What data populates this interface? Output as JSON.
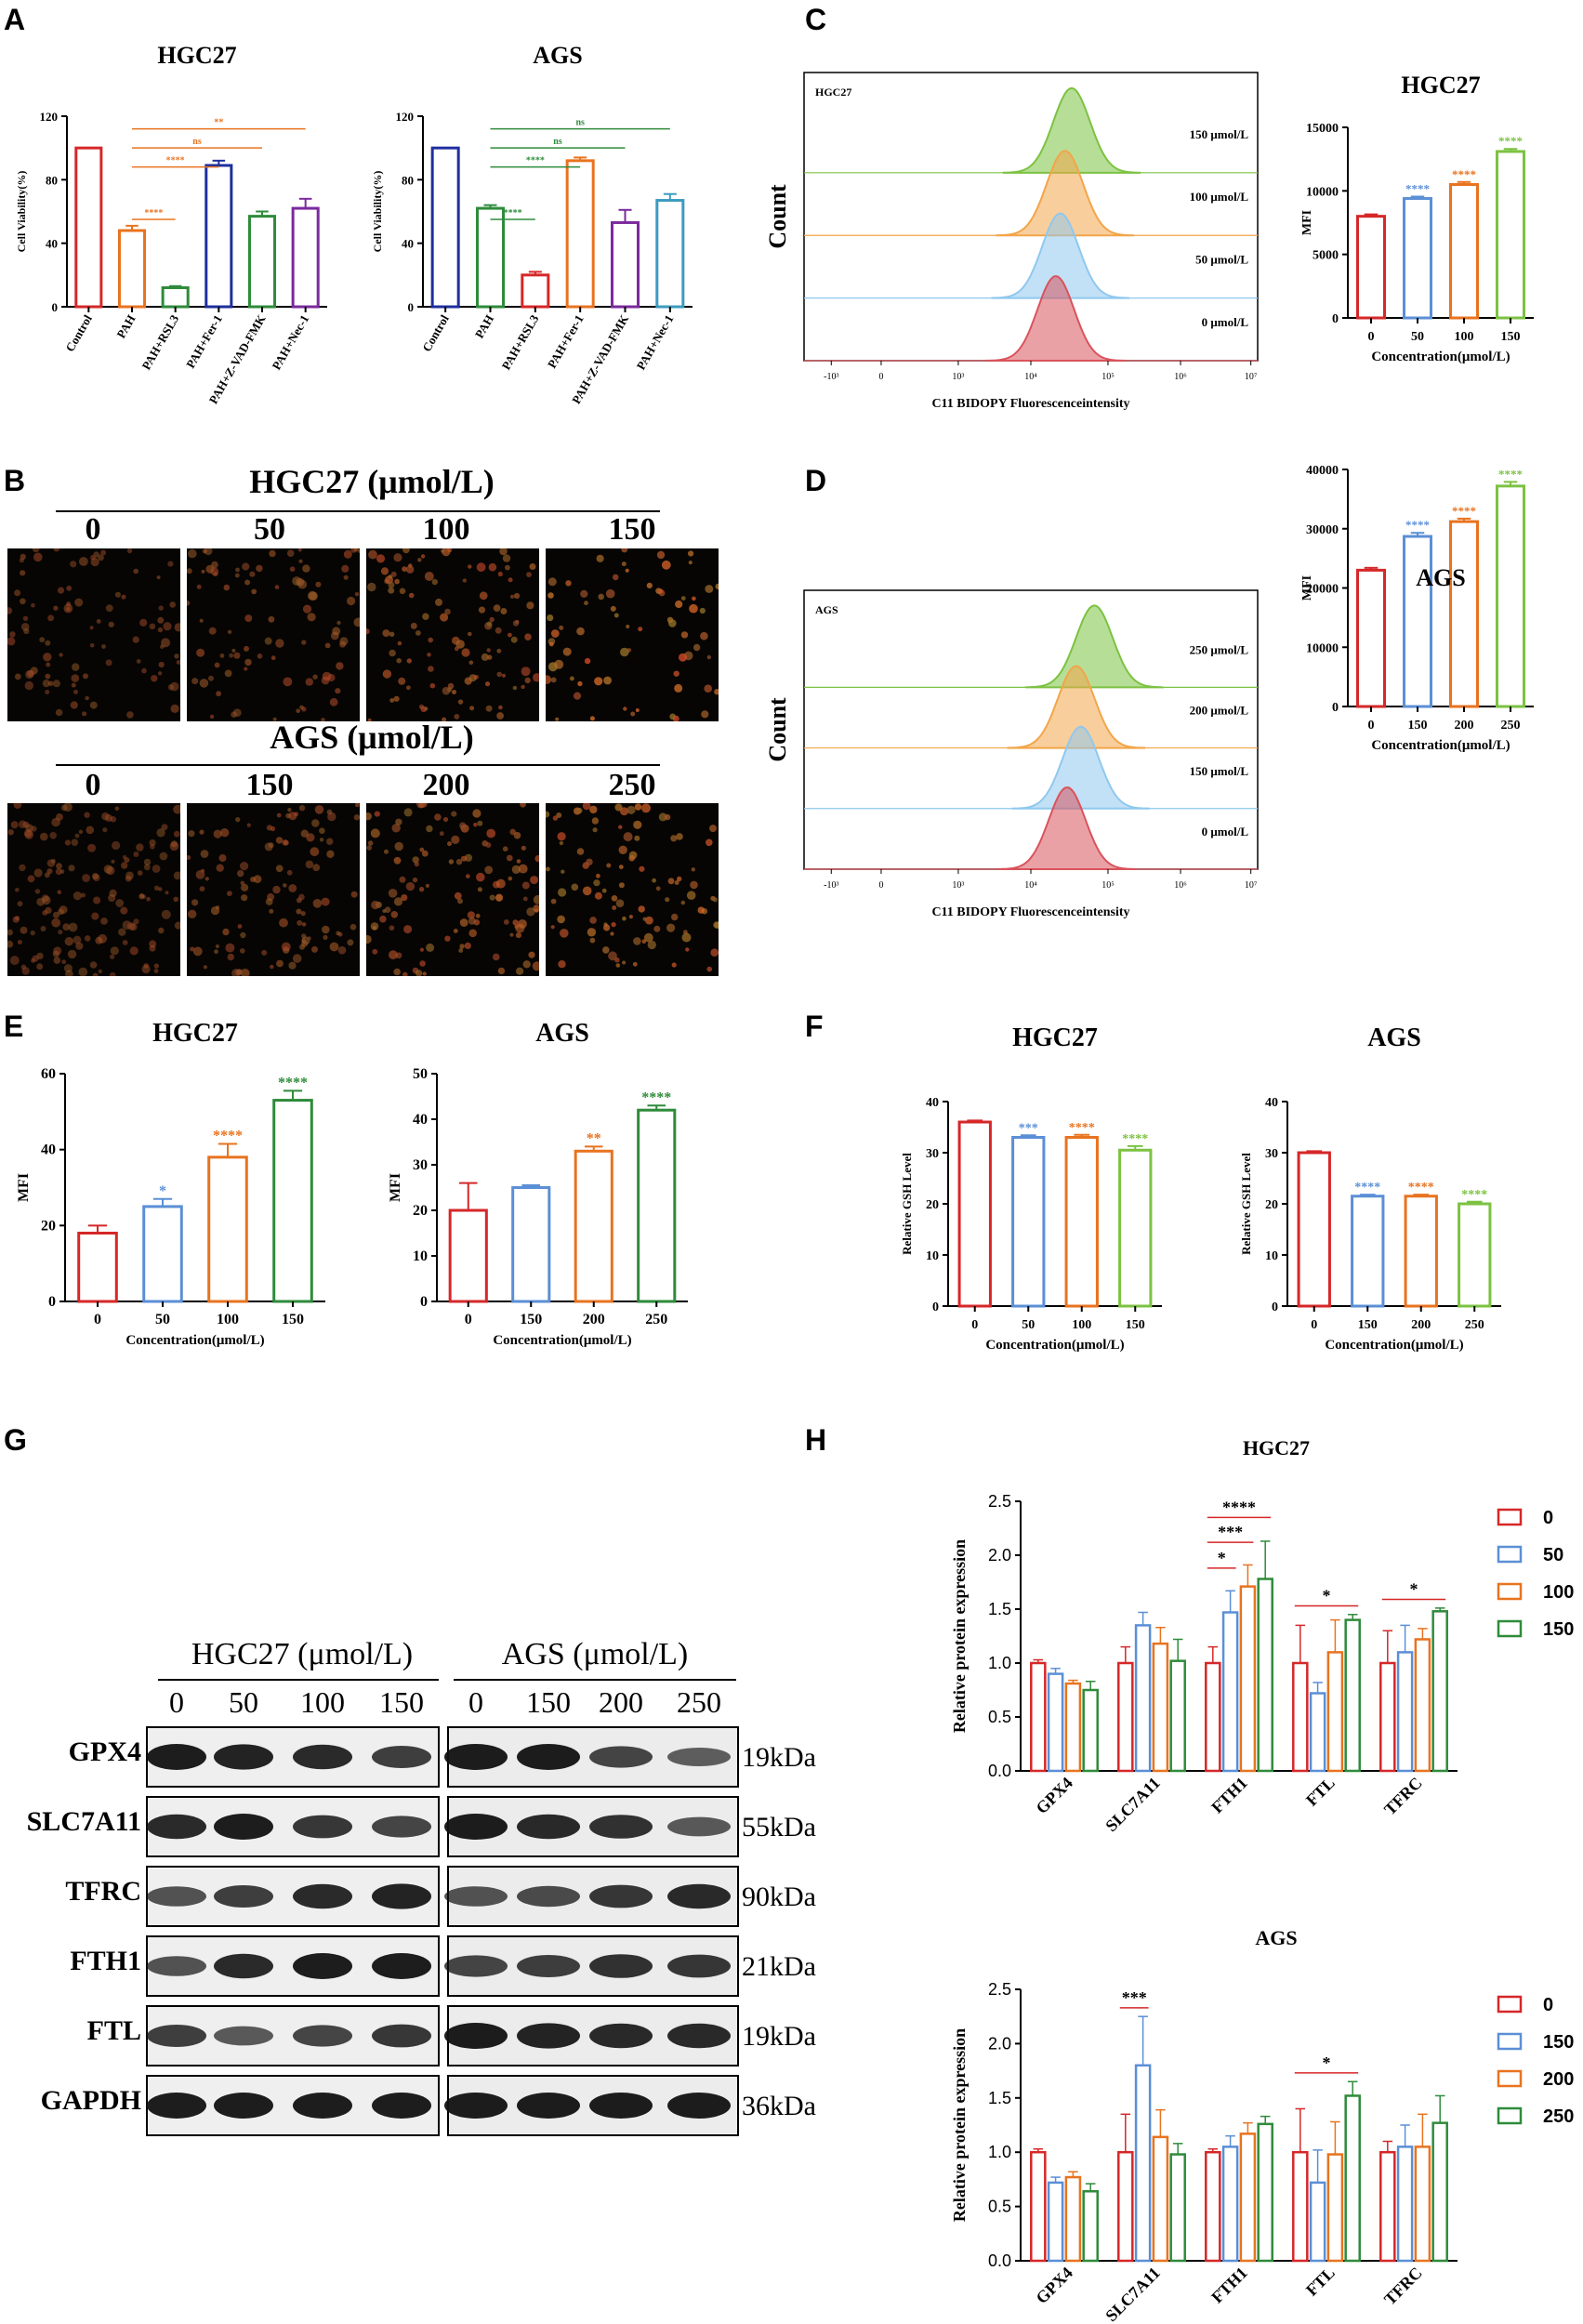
{
  "panel_labels": {
    "A": "A",
    "B": "B",
    "C": "C",
    "D": "D",
    "E": "E",
    "F": "F",
    "G": "G",
    "H": "H"
  },
  "colors": {
    "red": "#d62728",
    "orange": "#e8731f",
    "dark_green": "#2e8b3a",
    "navy": "#1f2f9e",
    "purple": "#7b2a9e",
    "teal": "#3c9bbf",
    "light_blue": "#5b8fd6",
    "light_green": "#7cc242",
    "light_orange": "#f2a54a",
    "pale_blue": "#8fc8ee",
    "rose": "#d9535c"
  },
  "chart_data": [
    {
      "id": "A1",
      "type": "bar",
      "title": "HGC27",
      "ylabel": "Cell Viability(%)",
      "ylim": [
        0,
        120
      ],
      "yticks": [
        0,
        40,
        80,
        120
      ],
      "categories": [
        "Control",
        "PAH",
        "PAH+RSL3",
        "PAH+Fer-1",
        "PAH+Z-VAD-FMK",
        "PAH+Nec-1"
      ],
      "values": [
        100,
        48,
        12,
        89,
        57,
        62
      ],
      "errors": [
        0,
        3,
        1,
        3,
        3,
        6
      ],
      "bar_colors": [
        "#d62728",
        "#e8731f",
        "#2e8b3a",
        "#1f2f9e",
        "#2e8b3a",
        "#7b2a9e"
      ],
      "annotations": [
        {
          "label": "****",
          "from": 1,
          "to": 2,
          "color": "#e8731f"
        },
        {
          "label": "****",
          "from": 1,
          "to": 3,
          "color": "#e8731f"
        },
        {
          "label": "ns",
          "from": 1,
          "to": 4,
          "color": "#e8731f"
        },
        {
          "label": "**",
          "from": 1,
          "to": 5,
          "color": "#e8731f"
        }
      ]
    },
    {
      "id": "A2",
      "type": "bar",
      "title": "AGS",
      "ylabel": "Cell Viability(%)",
      "ylim": [
        0,
        120
      ],
      "yticks": [
        0,
        40,
        80,
        120
      ],
      "categories": [
        "Control",
        "PAH",
        "PAH+RSL3",
        "PAH+Fer-1",
        "PAH+Z-VAD-FMK",
        "PAH+Nec-1"
      ],
      "values": [
        100,
        62,
        20,
        92,
        53,
        67
      ],
      "errors": [
        0,
        2,
        2,
        2,
        8,
        4
      ],
      "bar_colors": [
        "#1f2f9e",
        "#2e8b3a",
        "#d62728",
        "#e8731f",
        "#7b2a9e",
        "#3c9bbf"
      ],
      "annotations": [
        {
          "label": "****",
          "from": 1,
          "to": 2,
          "color": "#2e8b3a"
        },
        {
          "label": "****",
          "from": 1,
          "to": 3,
          "color": "#2e8b3a"
        },
        {
          "label": "ns",
          "from": 1,
          "to": 4,
          "color": "#2e8b3a"
        },
        {
          "label": "ns",
          "from": 1,
          "to": 5,
          "color": "#2e8b3a"
        }
      ]
    },
    {
      "id": "C2",
      "type": "bar",
      "title": "HGC27",
      "ylabel": "MFI",
      "xlabel": "Concentration(μmol/L)",
      "ylim": [
        0,
        15000
      ],
      "yticks": [
        0,
        5000,
        10000,
        15000
      ],
      "categories": [
        "0",
        "50",
        "100",
        "150"
      ],
      "values": [
        8000,
        9400,
        10500,
        13100
      ],
      "errors": [
        150,
        150,
        200,
        200
      ],
      "bar_colors": [
        "#d62728",
        "#5b8fd6",
        "#e8731f",
        "#7cc242"
      ],
      "sig": [
        "",
        "****",
        "****",
        "****"
      ]
    },
    {
      "id": "D2",
      "type": "bar",
      "title": "AGS",
      "ylabel": "MFI",
      "xlabel": "Concentration(μmol/L)",
      "ylim": [
        0,
        40000
      ],
      "yticks": [
        0,
        10000,
        20000,
        30000,
        40000
      ],
      "categories": [
        "0",
        "150",
        "200",
        "250"
      ],
      "values": [
        23000,
        28700,
        31200,
        37200
      ],
      "errors": [
        400,
        600,
        500,
        700
      ],
      "bar_colors": [
        "#d62728",
        "#5b8fd6",
        "#e8731f",
        "#7cc242"
      ],
      "sig": [
        "",
        "****",
        "****",
        "****"
      ]
    },
    {
      "id": "E1",
      "type": "bar",
      "title": "HGC27",
      "ylabel": "MFI",
      "xlabel": "Concentration(μmol/L)",
      "ylim": [
        0,
        60
      ],
      "yticks": [
        0,
        20,
        40,
        60
      ],
      "categories": [
        "0",
        "50",
        "100",
        "150"
      ],
      "values": [
        18,
        25,
        38,
        53
      ],
      "errors": [
        2,
        2,
        3.5,
        2.5
      ],
      "bar_colors": [
        "#d62728",
        "#5b8fd6",
        "#e8731f",
        "#2e8b3a"
      ],
      "sig": [
        "",
        "*",
        "****",
        "****"
      ]
    },
    {
      "id": "E2",
      "type": "bar",
      "title": "AGS",
      "ylabel": "MFI",
      "xlabel": "Concentration(μmol/L)",
      "ylim": [
        0,
        50
      ],
      "yticks": [
        0,
        10,
        20,
        30,
        40,
        50
      ],
      "categories": [
        "0",
        "150",
        "200",
        "250"
      ],
      "values": [
        20,
        25,
        33,
        42
      ],
      "errors": [
        6,
        0.5,
        1,
        1
      ],
      "bar_colors": [
        "#d62728",
        "#5b8fd6",
        "#e8731f",
        "#2e8b3a"
      ],
      "sig": [
        "",
        "",
        "**",
        "****"
      ]
    },
    {
      "id": "F1",
      "type": "bar",
      "title": "HGC27",
      "ylabel": "Relative GSH Level",
      "xlabel": "Concentration(μmol/L)",
      "ylim": [
        0,
        40
      ],
      "yticks": [
        0,
        10,
        20,
        30,
        40
      ],
      "categories": [
        "0",
        "50",
        "100",
        "150"
      ],
      "values": [
        36,
        33,
        33,
        30.5
      ],
      "errors": [
        0.3,
        0.4,
        0.5,
        0.8
      ],
      "bar_colors": [
        "#d62728",
        "#5b8fd6",
        "#e8731f",
        "#7cc242"
      ],
      "sig": [
        "",
        "***",
        "****",
        "****"
      ]
    },
    {
      "id": "F2",
      "type": "bar",
      "title": "AGS",
      "ylabel": "Relative GSH Level",
      "xlabel": "Concentration(μmol/L)",
      "ylim": [
        0,
        40
      ],
      "yticks": [
        0,
        10,
        20,
        30,
        40
      ],
      "categories": [
        "0",
        "150",
        "200",
        "250"
      ],
      "values": [
        30,
        21.5,
        21.5,
        20
      ],
      "errors": [
        0.3,
        0.3,
        0.3,
        0.4
      ],
      "bar_colors": [
        "#d62728",
        "#5b8fd6",
        "#e8731f",
        "#7cc242"
      ],
      "sig": [
        "",
        "****",
        "****",
        "****"
      ]
    },
    {
      "id": "H1",
      "type": "bar",
      "title": "HGC27",
      "ylabel": "Relative protein expression",
      "ylim": [
        0,
        2.5
      ],
      "yticks": [
        "0.0",
        "0.5",
        "1.0",
        "1.5",
        "2.0",
        "2.5"
      ],
      "categories": [
        "GPX4",
        "SLC7A11",
        "FTH1",
        "FTL",
        "TFRC"
      ],
      "series": [
        {
          "name": "0",
          "color": "#d62728",
          "values": [
            1.0,
            1.0,
            1.0,
            1.0,
            1.0
          ],
          "errors": [
            0.03,
            0.15,
            0.15,
            0.35,
            0.3
          ]
        },
        {
          "name": "50",
          "color": "#5b8fd6",
          "values": [
            0.9,
            1.35,
            1.47,
            0.72,
            1.1
          ],
          "errors": [
            0.05,
            0.12,
            0.2,
            0.1,
            0.25
          ]
        },
        {
          "name": "100",
          "color": "#e8731f",
          "values": [
            0.81,
            1.18,
            1.71,
            1.1,
            1.22
          ]
        },
        {
          "name": "150",
          "color": "#2e8b3a",
          "values": [
            0.75,
            1.02,
            1.78,
            1.4,
            1.48
          ]
        }
      ],
      "errors": [
        [
          0.03,
          0.15,
          0.15,
          0.35,
          0.3
        ],
        [
          0.05,
          0.12,
          0.2,
          0.1,
          0.25
        ],
        [
          0.03,
          0.15,
          0.2,
          0.3,
          0.1
        ],
        [
          0.08,
          0.2,
          0.35,
          0.05,
          0.03
        ]
      ],
      "sig": [
        {
          "label": "****",
          "group": 2,
          "from": 0,
          "to": 3
        },
        {
          "label": "***",
          "group": 2,
          "from": 0,
          "to": 2
        },
        {
          "label": "*",
          "group": 2,
          "from": 0,
          "to": 1
        },
        {
          "label": "*",
          "group": 3,
          "from": 0,
          "to": 3
        },
        {
          "label": "*",
          "group": 4,
          "from": 0,
          "to": 3
        }
      ]
    },
    {
      "id": "H2",
      "type": "bar",
      "title": "AGS",
      "ylabel": "Relative protein expression",
      "ylim": [
        0,
        2.5
      ],
      "yticks": [
        "0.0",
        "0.5",
        "1.0",
        "1.5",
        "2.0",
        "2.5"
      ],
      "categories": [
        "GPX4",
        "SLC7A11",
        "FTH1",
        "FTL",
        "TFRC"
      ],
      "series": [
        {
          "name": "0",
          "color": "#d62728",
          "values": [
            1.0,
            1.0,
            1.0,
            1.0,
            1.0
          ]
        },
        {
          "name": "150",
          "color": "#5b8fd6",
          "values": [
            0.72,
            1.8,
            1.05,
            0.72,
            1.05
          ]
        },
        {
          "name": "200",
          "color": "#e8731f",
          "values": [
            0.77,
            1.14,
            1.17,
            0.98,
            1.05
          ]
        },
        {
          "name": "250",
          "color": "#2e8b3a",
          "values": [
            0.64,
            0.98,
            1.26,
            1.52,
            1.27
          ]
        }
      ],
      "errors": [
        [
          0.03,
          0.35,
          0.03,
          0.4,
          0.1
        ],
        [
          0.05,
          0.45,
          0.1,
          0.3,
          0.2
        ],
        [
          0.05,
          0.25,
          0.1,
          0.3,
          0.3
        ],
        [
          0.07,
          0.1,
          0.07,
          0.13,
          0.25
        ]
      ],
      "sig": [
        {
          "label": "***",
          "group": 1,
          "from": 0,
          "to": 1
        },
        {
          "label": "*",
          "group": 3,
          "from": 0,
          "to": 3
        }
      ]
    }
  ],
  "flow": {
    "C": {
      "tag": "HGC27",
      "ylabel": "Count",
      "xlabel": "C11 BIDOPY Fluorescenceintensity",
      "xticks": [
        "-10³",
        "0",
        "10³",
        "10⁴",
        "10⁵",
        "10⁶",
        "10⁷"
      ],
      "peaks": [
        {
          "label": "150 μmol/L",
          "center": 0.59
        },
        {
          "label": "100 μmol/L",
          "center": 0.575
        },
        {
          "label": "50 μmol/L",
          "center": 0.565
        },
        {
          "label": "0 μmol/L",
          "center": 0.555
        }
      ]
    },
    "D": {
      "tag": "AGS",
      "ylabel": "Count",
      "xlabel": "C11 BIDOPY Fluorescenceintensity",
      "xticks": [
        "-10³",
        "0",
        "10³",
        "10⁴",
        "10⁵",
        "10⁶",
        "10⁷"
      ],
      "peaks": [
        {
          "label": "250 μmol/L",
          "center": 0.64
        },
        {
          "label": "200 μmol/L",
          "center": 0.6
        },
        {
          "label": "150 μmol/L",
          "center": 0.61
        },
        {
          "label": "0 μmol/L",
          "center": 0.58
        }
      ]
    }
  },
  "microscopy": {
    "hgc_title": "HGC27 (μmol/L)",
    "hgc_doses": [
      "0",
      "50",
      "100",
      "150"
    ],
    "ags_title": "AGS (μmol/L)",
    "ags_doses": [
      "0",
      "150",
      "200",
      "250"
    ]
  },
  "blot": {
    "hgc_title": "HGC27 (μmol/L)",
    "hgc_doses": [
      "0",
      "50",
      "100",
      "150"
    ],
    "ags_title": "AGS (μmol/L)",
    "ags_doses": [
      "0",
      "150",
      "200",
      "250"
    ],
    "proteins": [
      {
        "name": "GPX4",
        "kda": "19kDa",
        "hgc": [
          1,
          0.95,
          0.9,
          0.75
        ],
        "ags": [
          1,
          1,
          0.7,
          0.5
        ]
      },
      {
        "name": "SLC7A11",
        "kda": "55kDa",
        "hgc": [
          0.9,
          1,
          0.8,
          0.7
        ],
        "ags": [
          1,
          0.9,
          0.85,
          0.55
        ]
      },
      {
        "name": "TFRC",
        "kda": "90kDa",
        "hgc": [
          0.6,
          0.75,
          0.9,
          0.95
        ],
        "ags": [
          0.6,
          0.65,
          0.8,
          0.9
        ]
      },
      {
        "name": "FTH1",
        "kda": "21kDa",
        "hgc": [
          0.6,
          0.9,
          1,
          1
        ],
        "ags": [
          0.7,
          0.75,
          0.85,
          0.8
        ]
      },
      {
        "name": "FTL",
        "kda": "19kDa",
        "hgc": [
          0.75,
          0.55,
          0.7,
          0.8
        ],
        "ags": [
          1,
          0.95,
          0.9,
          0.9
        ]
      },
      {
        "name": "GAPDH",
        "kda": "36kDa",
        "hgc": [
          1,
          1,
          1,
          1
        ],
        "ags": [
          1,
          1,
          1,
          1
        ]
      }
    ]
  }
}
